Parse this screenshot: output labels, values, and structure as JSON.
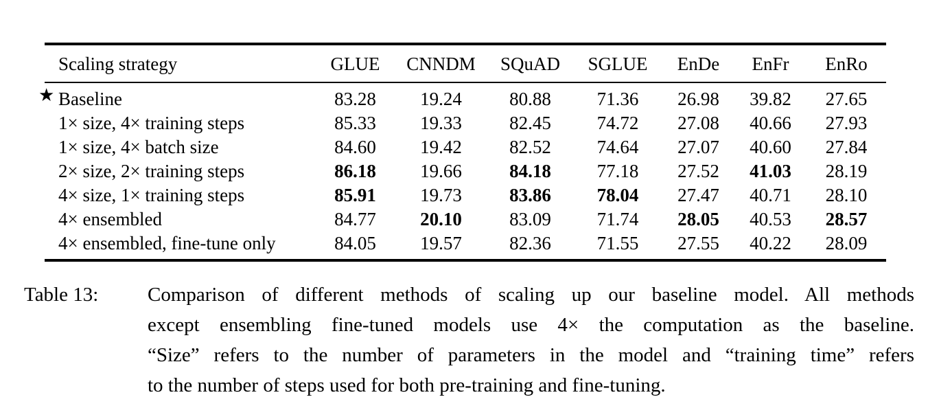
{
  "page": {
    "background_color": "#ffffff",
    "text_color": "#000000"
  },
  "table": {
    "star_symbol": "★",
    "columns": [
      {
        "label": "Scaling strategy"
      },
      {
        "label": "GLUE"
      },
      {
        "label": "CNNDM"
      },
      {
        "label": "SQuAD"
      },
      {
        "label": "SGLUE"
      },
      {
        "label": "EnDe"
      },
      {
        "label": "EnFr"
      },
      {
        "label": "EnRo"
      }
    ],
    "rows": [
      {
        "strategy": "Baseline",
        "star": true,
        "values": [
          "83.28",
          "19.24",
          "80.88",
          "71.36",
          "26.98",
          "39.82",
          "27.65"
        ],
        "bold": []
      },
      {
        "strategy": "1× size, 4× training steps",
        "star": false,
        "values": [
          "85.33",
          "19.33",
          "82.45",
          "74.72",
          "27.08",
          "40.66",
          "27.93"
        ],
        "bold": []
      },
      {
        "strategy": "1× size, 4× batch size",
        "star": false,
        "values": [
          "84.60",
          "19.42",
          "82.52",
          "74.64",
          "27.07",
          "40.60",
          "27.84"
        ],
        "bold": []
      },
      {
        "strategy": "2× size, 2× training steps",
        "star": false,
        "values": [
          "86.18",
          "19.66",
          "84.18",
          "77.18",
          "27.52",
          "41.03",
          "28.19"
        ],
        "bold": [
          0,
          2,
          5
        ]
      },
      {
        "strategy": "4× size, 1× training steps",
        "star": false,
        "values": [
          "85.91",
          "19.73",
          "83.86",
          "78.04",
          "27.47",
          "40.71",
          "28.10"
        ],
        "bold": [
          0,
          2,
          3
        ]
      },
      {
        "strategy": "4× ensembled",
        "star": false,
        "values": [
          "84.77",
          "20.10",
          "83.09",
          "71.74",
          "28.05",
          "40.53",
          "28.57"
        ],
        "bold": [
          1,
          4,
          6
        ]
      },
      {
        "strategy": "4× ensembled, fine-tune only",
        "star": false,
        "values": [
          "84.05",
          "19.57",
          "82.36",
          "71.55",
          "27.55",
          "40.22",
          "28.09"
        ],
        "bold": []
      }
    ]
  },
  "caption": {
    "label": "Table 13:",
    "lines": [
      "Comparison of different methods of scaling up our baseline model. All methods",
      "except ensembling fine-tuned models use 4× the computation as the baseline.",
      "“Size” refers to the number of parameters in the model and “training time” refers",
      "to the number of steps used for both pre-training and fine-tuning."
    ]
  }
}
